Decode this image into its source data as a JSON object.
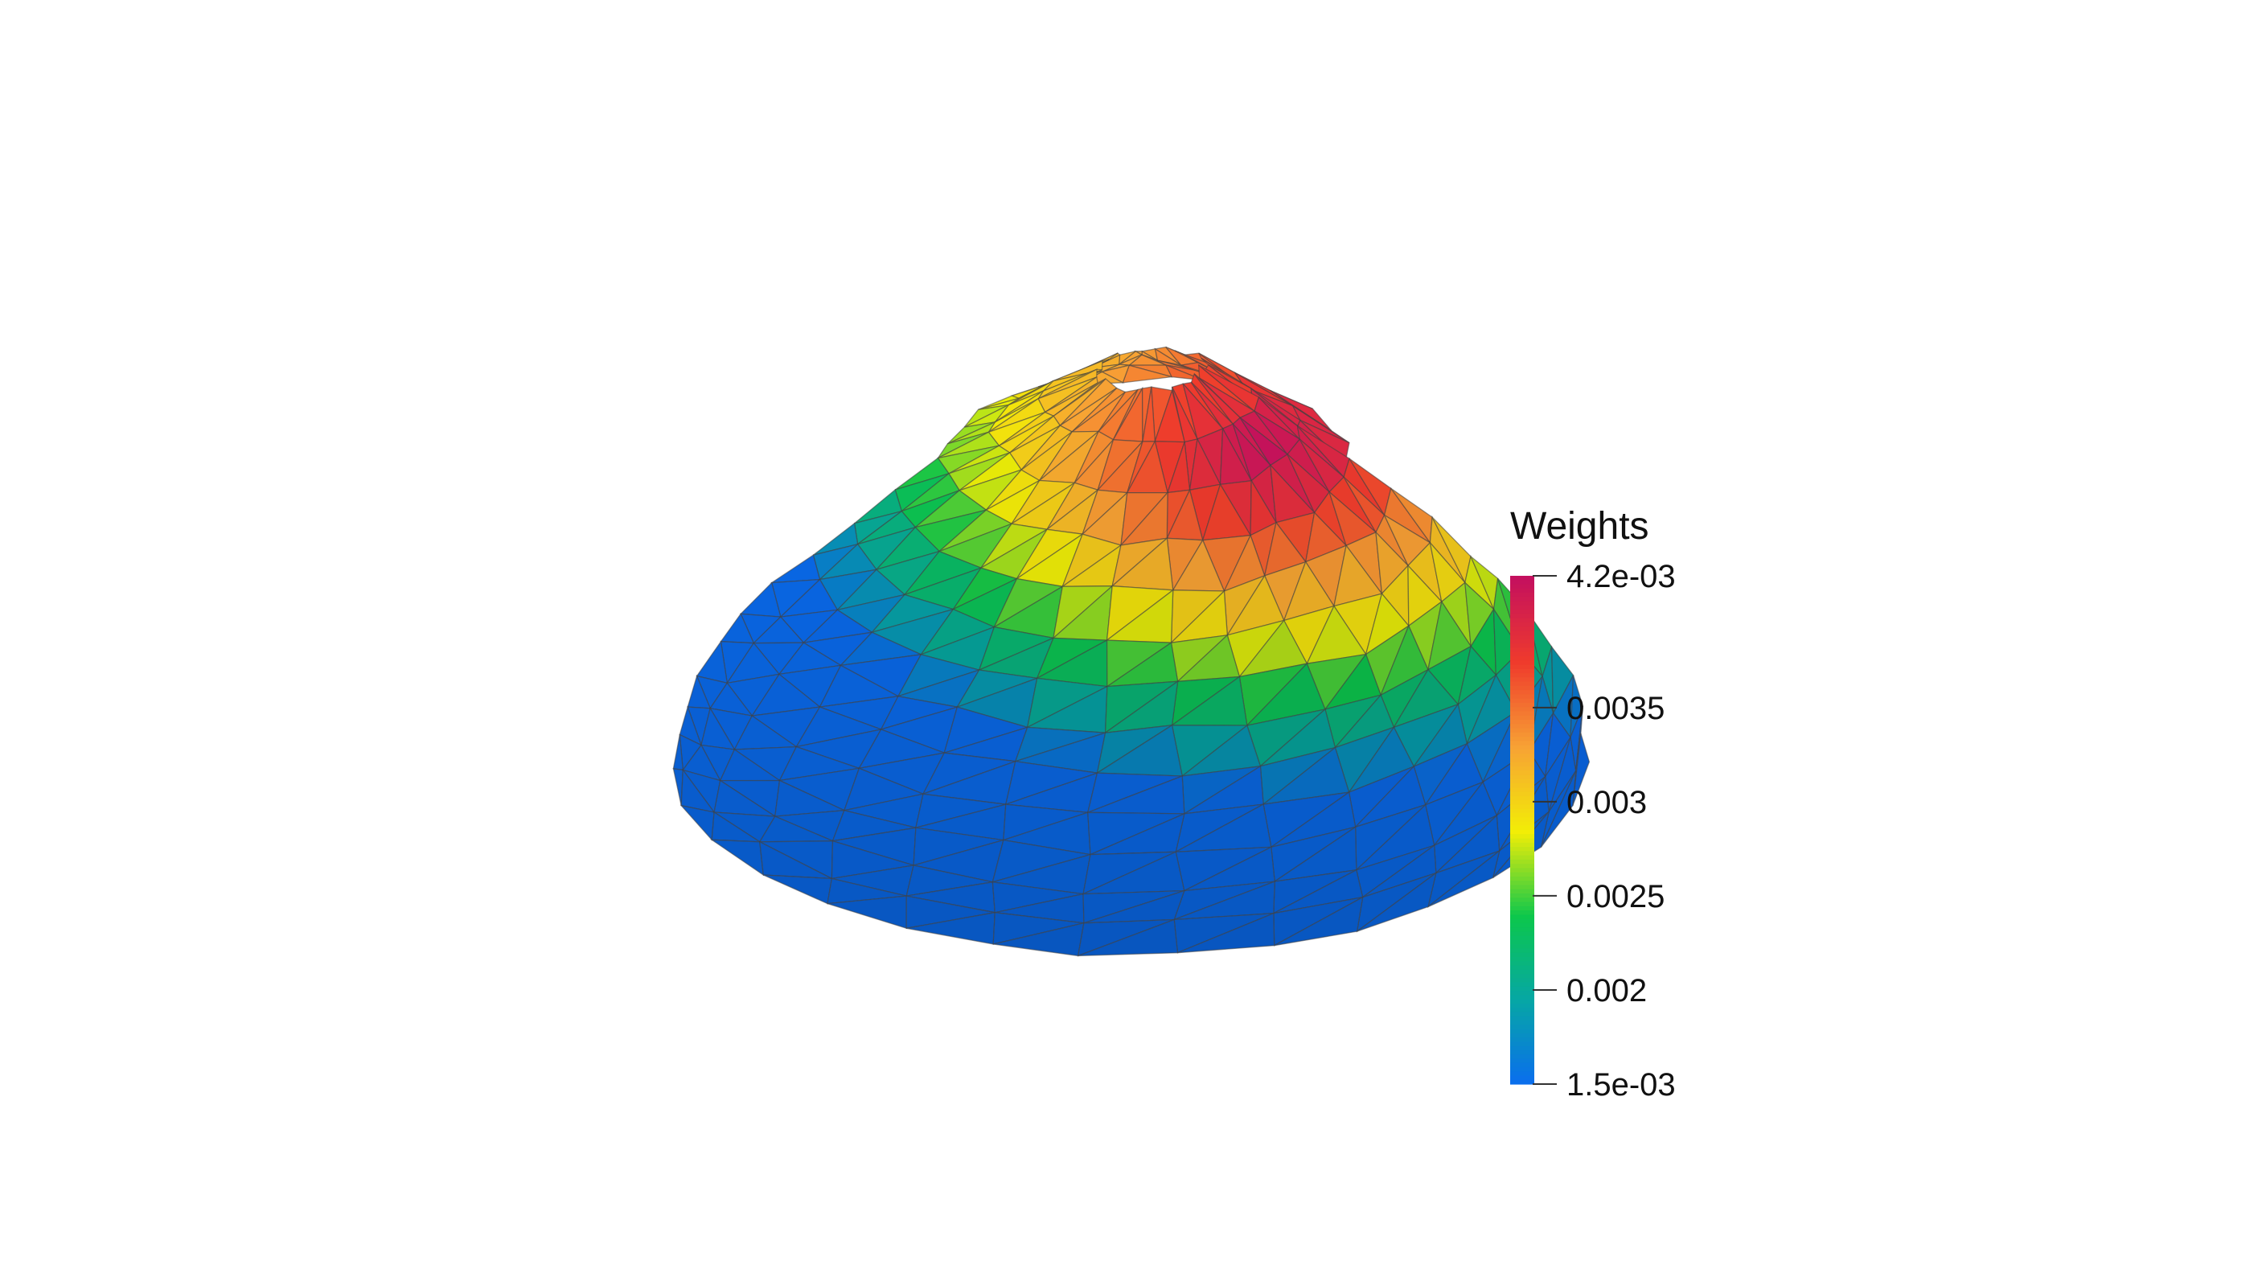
{
  "chart_data": {
    "type": "heatmap",
    "subtype": "3d-surface-mesh",
    "scalar_name": "Weights",
    "range": [
      0.0015,
      0.0042
    ],
    "colorbar": {
      "title": "Weights",
      "tick_values": [
        0.0042,
        0.0035,
        0.003,
        0.0025,
        0.002,
        0.0015
      ],
      "tick_labels": [
        "4.2e-03",
        "0.0035",
        "0.003",
        "0.0025",
        "0.002",
        "1.5e-03"
      ],
      "placement": "right",
      "colormap": [
        "#0a6cf0",
        "#06a6a6",
        "#0cc74c",
        "#f2ee06",
        "#f7a234",
        "#ef3b2c",
        "#c4105e"
      ]
    },
    "mesh": {
      "shape": "ellipsoidal dome (egg-shaped cap)",
      "faces": "triangulated",
      "edge_color": "#404040",
      "peak_region": "top-right of cap",
      "low_region": "bottom / left rim",
      "background": "#ffffff"
    }
  }
}
